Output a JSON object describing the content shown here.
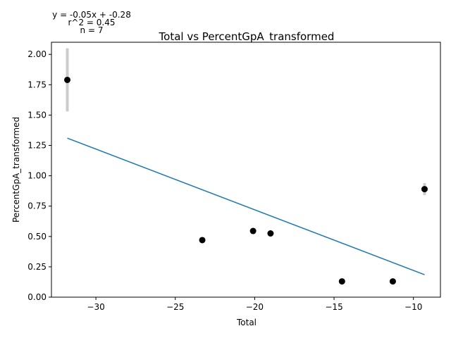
{
  "chart_data": {
    "type": "scatter",
    "title": "Total vs PercentGpA_transformed",
    "xlabel": "Total",
    "ylabel": "PercentGpA_transformed",
    "xlim": [
      -32.8,
      -8.3
    ],
    "ylim": [
      0.0,
      2.1
    ],
    "xticks": [
      -30,
      -25,
      -20,
      -15,
      -10
    ],
    "xtick_labels": [
      "−30",
      "−25",
      "−20",
      "−15",
      "−10"
    ],
    "yticks": [
      0.0,
      0.25,
      0.5,
      0.75,
      1.0,
      1.25,
      1.5,
      1.75,
      2.0
    ],
    "ytick_labels": [
      "0.00",
      "0.25",
      "0.50",
      "0.75",
      "1.00",
      "1.25",
      "1.50",
      "1.75",
      "2.00"
    ],
    "grid": false,
    "points": [
      {
        "x": -31.8,
        "y": 1.79,
        "err_low": 1.53,
        "err_high": 2.05
      },
      {
        "x": -23.3,
        "y": 0.47
      },
      {
        "x": -20.1,
        "y": 0.545
      },
      {
        "x": -19.0,
        "y": 0.525
      },
      {
        "x": -14.5,
        "y": 0.13
      },
      {
        "x": -11.3,
        "y": 0.13
      },
      {
        "x": -9.3,
        "y": 0.89,
        "err_low": 0.84,
        "err_high": 0.94
      }
    ],
    "fit_line": {
      "x": [
        -31.8,
        -9.3
      ],
      "y": [
        1.31,
        0.185
      ]
    },
    "annotations": {
      "equation": "y = -0.05x + -0.28",
      "r2": "r^2 = 0.45",
      "n": "n = 7"
    },
    "colors": {
      "points": "#000000",
      "fit": "#1f77b4",
      "errorbar": "#cccccc"
    }
  }
}
